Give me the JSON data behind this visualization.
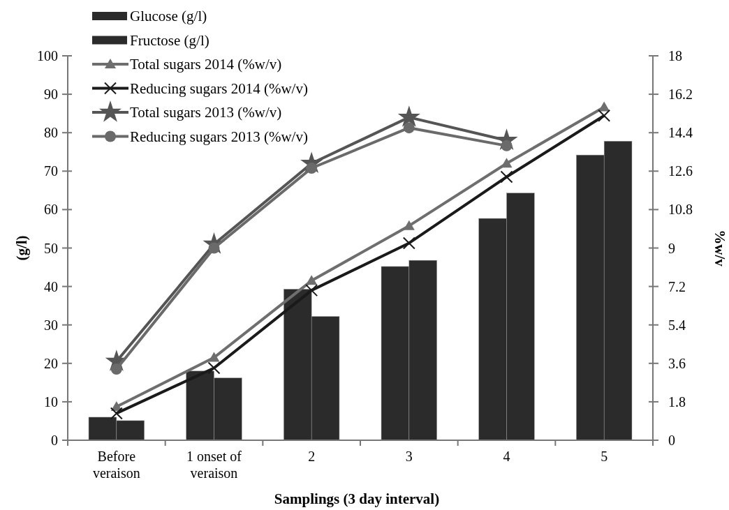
{
  "chart_data": {
    "type": "bar",
    "xlabel": "Samplings (3 day interval)",
    "ylabel": "(g/l)",
    "y2label": "%w/v",
    "categories": [
      "Before veraison",
      "1 onset of veraison",
      "2",
      "3",
      "4",
      "5"
    ],
    "ylim": [
      0,
      100
    ],
    "yticks": [
      0,
      10,
      20,
      30,
      40,
      50,
      60,
      70,
      80,
      90,
      100
    ],
    "y2lim": [
      0,
      18
    ],
    "y2ticks": [
      0,
      1.8,
      3.6,
      5.4,
      7.2,
      9,
      10.8,
      12.6,
      14.4,
      16.2,
      18
    ],
    "legend": "top left",
    "grid": false,
    "series": [
      {
        "name": "Glucose (g/l)",
        "color": "#2b2b2b",
        "values": [
          6,
          18,
          39.3,
          45.2,
          57.7,
          74.2
        ]
      },
      {
        "name": "Fructose (g/l)",
        "color": "#2b2b2b",
        "values": [
          5.1,
          16.2,
          32.2,
          46.8,
          64.3,
          77.8
        ]
      },
      {
        "name": "Total sugars 2014 (%w/v)",
        "type": "line",
        "axis": "y2",
        "marker": "triangle",
        "color": "#6e6e6e",
        "values": [
          1.57,
          3.87,
          7.47,
          10.04,
          12.96,
          15.6
        ]
      },
      {
        "name": "Reducing sugars 2014 (%w/v)",
        "type": "line",
        "axis": "y2",
        "marker": "cross",
        "color": "#1a1a1a",
        "values": [
          1.26,
          3.38,
          7.02,
          9.23,
          12.33,
          15.2
        ]
      },
      {
        "name": "Total sugars 2013 (%w/v)",
        "type": "line",
        "axis": "y2",
        "marker": "star",
        "color": "#555555",
        "values": [
          3.69,
          9.18,
          12.96,
          15.12,
          14.04,
          null
        ]
      },
      {
        "name": "Reducing sugars 2013 (%w/v)",
        "type": "line",
        "axis": "y2",
        "marker": "circle",
        "color": "#6a6a6a",
        "values": [
          3.33,
          9.0,
          12.74,
          14.63,
          13.79,
          null
        ]
      }
    ]
  }
}
